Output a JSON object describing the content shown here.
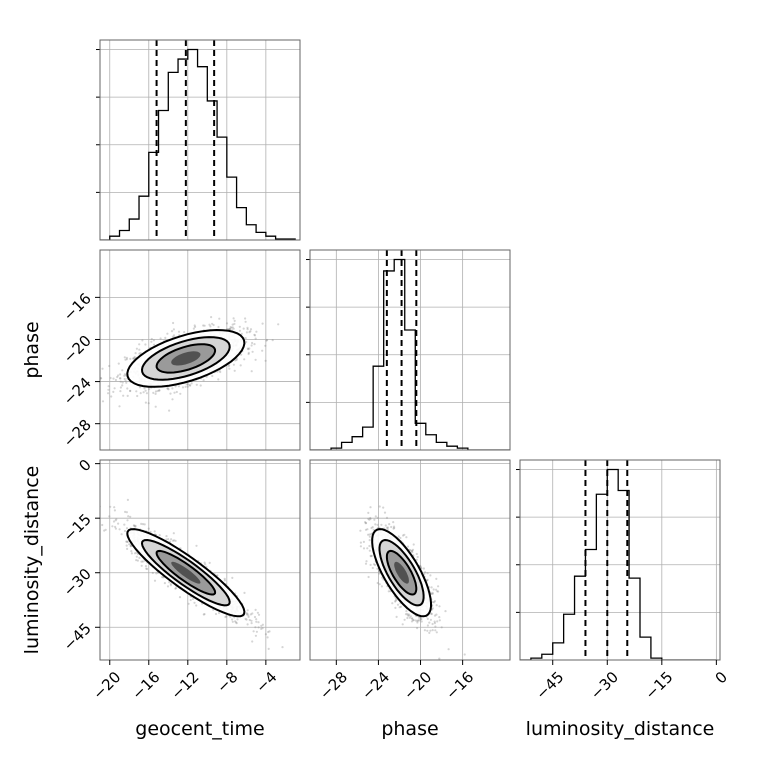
{
  "chart_data": {
    "type": "corner",
    "parameters": [
      "geocent_time",
      "phase",
      "luminosity_distance"
    ],
    "axis_labels": {
      "bottom": [
        "geocent_time",
        "phase",
        "luminosity_distance"
      ],
      "left": [
        "phase",
        "luminosity_distance"
      ]
    },
    "ranges": {
      "geocent_time": [
        -21,
        -0.5
      ],
      "phase": [
        -30.5,
        -11.5
      ],
      "luminosity_distance": [
        -54,
        1
      ]
    },
    "ticks": {
      "geocent_time": [
        -20,
        -16,
        -12,
        -8,
        -4
      ],
      "phase": [
        -28,
        -24,
        -20,
        -16
      ],
      "luminosity_distance": [
        -45,
        -30,
        -15,
        0
      ]
    },
    "histograms": {
      "geocent_time": {
        "edges": [
          -21,
          -20,
          -19,
          -18,
          -17,
          -16,
          -15,
          -14,
          -13,
          -12,
          -11,
          -10,
          -9,
          -8,
          -7,
          -6,
          -5,
          -4,
          -3,
          -2,
          -1
        ],
        "density": [
          0.0,
          0.02,
          0.05,
          0.11,
          0.23,
          0.46,
          0.68,
          0.88,
          0.95,
          1.0,
          0.91,
          0.73,
          0.54,
          0.33,
          0.17,
          0.08,
          0.04,
          0.02,
          0.005,
          0.005
        ],
        "quantiles": [
          -15.2,
          -12.2,
          -9.3
        ]
      },
      "phase": {
        "edges": [
          -30.5,
          -29.5,
          -28.5,
          -27.5,
          -26.5,
          -25.5,
          -24.5,
          -23.5,
          -22.5,
          -21.5,
          -20.5,
          -19.5,
          -18.5,
          -17.5,
          -16.5,
          -15.5,
          -14.5,
          -13.5,
          -12.5,
          -11.5
        ],
        "density": [
          0.0,
          0.0,
          0.01,
          0.04,
          0.07,
          0.12,
          0.44,
          0.94,
          1.0,
          0.63,
          0.14,
          0.08,
          0.04,
          0.02,
          0.01,
          0.0,
          0.0,
          0.0,
          0.0
        ],
        "quantiles": [
          -23.2,
          -21.8,
          -20.4
        ]
      },
      "luminosity_distance": {
        "edges": [
          -54,
          -51,
          -48,
          -45,
          -42,
          -39,
          -36,
          -33,
          -30,
          -27,
          -24,
          -21,
          -18,
          -15,
          -12,
          -9,
          -6,
          -3,
          0
        ],
        "density": [
          0.0,
          0.01,
          0.03,
          0.09,
          0.24,
          0.44,
          0.58,
          0.87,
          1.0,
          0.89,
          0.43,
          0.12,
          0.01,
          0.0,
          0.0,
          0.0,
          0.0,
          0.0
        ],
        "quantiles": [
          -36,
          -30,
          -24.5
        ]
      }
    },
    "joint_distributions": [
      {
        "x": "geocent_time",
        "y": "phase",
        "mean": [
          -12.2,
          -21.8
        ],
        "sd": [
          3.0,
          1.35
        ],
        "correlation": 0.55,
        "contour_sigma_levels": [
          0.5,
          1.0,
          1.5,
          2.0
        ]
      },
      {
        "x": "geocent_time",
        "y": "luminosity_distance",
        "mean": [
          -12.2,
          -30.0
        ],
        "sd": [
          3.0,
          6.0
        ],
        "correlation": -0.9,
        "contour_sigma_levels": [
          0.5,
          1.0,
          1.5,
          2.0
        ]
      },
      {
        "x": "phase",
        "y": "luminosity_distance",
        "mean": [
          -21.8,
          -30.0
        ],
        "sd": [
          1.4,
          6.0
        ],
        "correlation": -0.73,
        "contour_sigma_levels": [
          0.5,
          1.0,
          1.5,
          2.0
        ]
      }
    ],
    "grid": true,
    "legend": "none"
  }
}
